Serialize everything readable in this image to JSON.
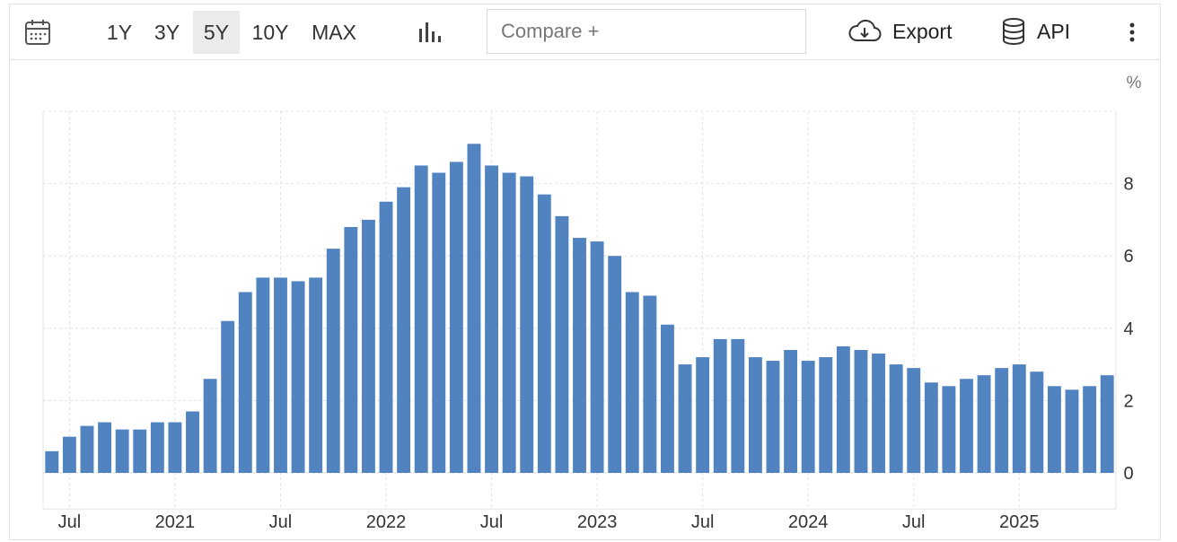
{
  "toolbar": {
    "ranges": [
      "1Y",
      "3Y",
      "5Y",
      "10Y",
      "MAX"
    ],
    "active_range": "5Y",
    "compare_placeholder": "Compare +",
    "export_label": "Export",
    "api_label": "API",
    "icons": {
      "calendar": "calendar-icon",
      "chart_type": "bar-chart-icon",
      "export": "cloud-download-icon",
      "api": "database-icon",
      "more": "more-vertical-icon"
    }
  },
  "chart_data": {
    "type": "bar",
    "unit_label": "%",
    "color": "#5083c0",
    "ylim": [
      -1,
      10
    ],
    "yticks": [
      0,
      2,
      4,
      6,
      8
    ],
    "grid": true,
    "x": [
      "2020-06",
      "2020-07",
      "2020-08",
      "2020-09",
      "2020-10",
      "2020-11",
      "2020-12",
      "2021-01",
      "2021-02",
      "2021-03",
      "2021-04",
      "2021-05",
      "2021-06",
      "2021-07",
      "2021-08",
      "2021-09",
      "2021-10",
      "2021-11",
      "2021-12",
      "2022-01",
      "2022-02",
      "2022-03",
      "2022-04",
      "2022-05",
      "2022-06",
      "2022-07",
      "2022-08",
      "2022-09",
      "2022-10",
      "2022-11",
      "2022-12",
      "2023-01",
      "2023-02",
      "2023-03",
      "2023-04",
      "2023-05",
      "2023-06",
      "2023-07",
      "2023-08",
      "2023-09",
      "2023-10",
      "2023-11",
      "2023-12",
      "2024-01",
      "2024-02",
      "2024-03",
      "2024-04",
      "2024-05",
      "2024-06",
      "2024-07",
      "2024-08",
      "2024-09",
      "2024-10",
      "2024-11",
      "2024-12",
      "2025-01",
      "2025-02",
      "2025-03",
      "2025-04",
      "2025-05",
      "2025-06"
    ],
    "values": [
      0.6,
      1.0,
      1.3,
      1.4,
      1.2,
      1.2,
      1.4,
      1.4,
      1.7,
      2.6,
      4.2,
      5.0,
      5.4,
      5.4,
      5.3,
      5.4,
      6.2,
      6.8,
      7.0,
      7.5,
      7.9,
      8.5,
      8.3,
      8.6,
      9.1,
      8.5,
      8.3,
      8.2,
      7.7,
      7.1,
      6.5,
      6.4,
      6.0,
      5.0,
      4.9,
      4.1,
      3.0,
      3.2,
      3.7,
      3.7,
      3.2,
      3.1,
      3.4,
      3.1,
      3.2,
      3.5,
      3.4,
      3.3,
      3.0,
      2.9,
      2.5,
      2.4,
      2.6,
      2.7,
      2.9,
      3.0,
      2.8,
      2.4,
      2.3,
      2.4,
      2.7
    ],
    "xtick_labels": [
      {
        "label": "Jul",
        "at": "2020-07"
      },
      {
        "label": "2021",
        "at": "2021-01"
      },
      {
        "label": "Jul",
        "at": "2021-07"
      },
      {
        "label": "2022",
        "at": "2022-01"
      },
      {
        "label": "Jul",
        "at": "2022-07"
      },
      {
        "label": "2023",
        "at": "2023-01"
      },
      {
        "label": "Jul",
        "at": "2023-07"
      },
      {
        "label": "2024",
        "at": "2024-01"
      },
      {
        "label": "Jul",
        "at": "2024-07"
      },
      {
        "label": "2025",
        "at": "2025-01"
      }
    ]
  }
}
